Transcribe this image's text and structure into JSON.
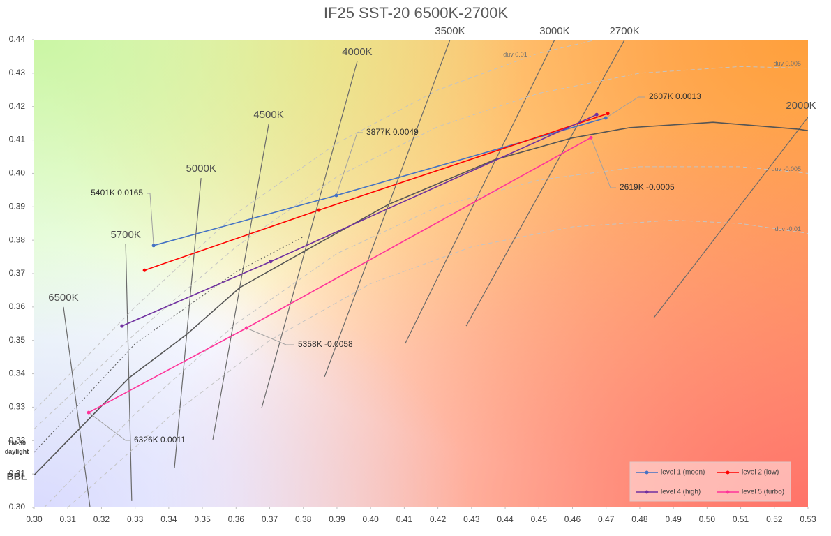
{
  "chart_data": {
    "type": "line",
    "title": "IF25 SST-20 6500K-2700K",
    "xlim": [
      0.3,
      0.53
    ],
    "ylim": [
      0.3,
      0.44
    ],
    "xticks": [
      {
        "value": 0.3,
        "label": "0.30"
      },
      {
        "value": 0.31,
        "label": "0.31"
      },
      {
        "value": 0.32,
        "label": "0.32"
      },
      {
        "value": 0.33,
        "label": "0.33"
      },
      {
        "value": 0.34,
        "label": "0.34"
      },
      {
        "value": 0.35,
        "label": "0.35"
      },
      {
        "value": 0.36,
        "label": "0.36"
      },
      {
        "value": 0.37,
        "label": "0.37"
      },
      {
        "value": 0.38,
        "label": "0.38"
      },
      {
        "value": 0.39,
        "label": "0.39"
      },
      {
        "value": 0.4,
        "label": "0.40"
      },
      {
        "value": 0.41,
        "label": "0.41"
      },
      {
        "value": 0.42,
        "label": "0.42"
      },
      {
        "value": 0.43,
        "label": "0.43"
      },
      {
        "value": 0.44,
        "label": "0.44"
      },
      {
        "value": 0.45,
        "label": "0.45"
      },
      {
        "value": 0.46,
        "label": "0.46"
      },
      {
        "value": 0.47,
        "label": "0.47"
      },
      {
        "value": 0.48,
        "label": "0.48"
      },
      {
        "value": 0.49,
        "label": "0.49"
      },
      {
        "value": 0.5,
        "label": "0.50"
      },
      {
        "value": 0.51,
        "label": "0.51"
      },
      {
        "value": 0.52,
        "label": "0.52"
      },
      {
        "value": 0.53,
        "label": "0.53"
      }
    ],
    "yticks": [
      {
        "value": 0.3,
        "label": "0.30"
      },
      {
        "value": 0.31,
        "label": "0.31"
      },
      {
        "value": 0.32,
        "label": "0.32"
      },
      {
        "value": 0.33,
        "label": "0.33"
      },
      {
        "value": 0.34,
        "label": "0.34"
      },
      {
        "value": 0.35,
        "label": "0.35"
      },
      {
        "value": 0.36,
        "label": "0.36"
      },
      {
        "value": 0.37,
        "label": "0.37"
      },
      {
        "value": 0.38,
        "label": "0.38"
      },
      {
        "value": 0.39,
        "label": "0.39"
      },
      {
        "value": 0.4,
        "label": "0.40"
      },
      {
        "value": 0.41,
        "label": "0.41"
      },
      {
        "value": 0.42,
        "label": "0.42"
      },
      {
        "value": 0.43,
        "label": "0.43"
      },
      {
        "value": 0.44,
        "label": "0.44"
      }
    ],
    "grid": false,
    "legend": "lower right",
    "series": [
      {
        "name": "level 1 (moon)",
        "color": "#4472c4",
        "x": [
          0.3355,
          0.3898,
          0.4699
        ],
        "values": [
          0.3784,
          0.3934,
          0.4166
        ]
      },
      {
        "name": "level 2 (low)",
        "color": "#ff0000",
        "x": [
          0.3328,
          0.3846,
          0.4705
        ],
        "values": [
          0.371,
          0.389,
          0.4179
        ]
      },
      {
        "name": "level 4 (high)",
        "color": "#7030a0",
        "x": [
          0.3261,
          0.3703,
          0.4672
        ],
        "values": [
          0.3543,
          0.3736,
          0.4176
        ]
      },
      {
        "name": "level 5 (turbo)",
        "color": "#ff3399",
        "x": [
          0.3162,
          0.3631,
          0.4655
        ],
        "values": [
          0.3284,
          0.3537,
          0.4107
        ]
      }
    ],
    "reference_curves": [
      {
        "label": "6500K",
        "dash": "solid",
        "color": "#6a6a6a",
        "x": [
          0.3087,
          0.3166
        ],
        "y": [
          0.36,
          0.3
        ]
      },
      {
        "label": "5700K",
        "dash": "solid",
        "color": "#6a6a6a",
        "x": [
          0.3272,
          0.329
        ],
        "y": [
          0.3788,
          0.3019
        ]
      },
      {
        "label": "5000K",
        "dash": "solid",
        "color": "#6a6a6a",
        "x": [
          0.3496,
          0.3417
        ],
        "y": [
          0.3986,
          0.3119
        ]
      },
      {
        "label": "4500K",
        "dash": "solid",
        "color": "#6a6a6a",
        "x": [
          0.3697,
          0.3531
        ],
        "y": [
          0.4147,
          0.3203
        ]
      },
      {
        "label": "4000K",
        "dash": "solid",
        "color": "#6a6a6a",
        "x": [
          0.396,
          0.3676
        ],
        "y": [
          0.4335,
          0.3297
        ]
      },
      {
        "label": "3500K",
        "dash": "solid",
        "color": "#6a6a6a",
        "x": [
          0.4236,
          0.3863
        ],
        "y": [
          0.44,
          0.3391
        ]
      },
      {
        "label": "3000K",
        "dash": "solid",
        "color": "#6a6a6a",
        "x": [
          0.4547,
          0.4103
        ],
        "y": [
          0.44,
          0.3491
        ]
      },
      {
        "label": "2700K",
        "dash": "solid",
        "color": "#6a6a6a",
        "x": [
          0.4755,
          0.4284
        ],
        "y": [
          0.44,
          0.3543
        ]
      },
      {
        "label": "2000K",
        "dash": "solid",
        "color": "#6a6a6a",
        "x": [
          0.53,
          0.4842
        ],
        "y": [
          0.4168,
          0.3568
        ]
      },
      {
        "label": "duv 0.01",
        "dash": "dashed",
        "color": "#c4c4c4",
        "x": [
          0.3,
          0.33,
          0.36,
          0.39,
          0.42,
          0.45,
          0.467
        ],
        "y": [
          0.329,
          0.36,
          0.388,
          0.409,
          0.425,
          0.436,
          0.44
        ]
      },
      {
        "label": "duv 0.005",
        "dash": "dashed",
        "color": "#c4c4c4",
        "x": [
          0.3,
          0.33,
          0.36,
          0.39,
          0.42,
          0.45,
          0.48,
          0.51,
          0.53
        ],
        "y": [
          0.3235,
          0.352,
          0.378,
          0.399,
          0.414,
          0.424,
          0.43,
          0.432,
          0.4315
        ]
      },
      {
        "label": "duv -0.005",
        "dash": "dashed",
        "color": "#c4c4c4",
        "x": [
          0.303,
          0.33,
          0.36,
          0.39,
          0.42,
          0.45,
          0.48,
          0.51,
          0.53
        ],
        "y": [
          0.3,
          0.328,
          0.355,
          0.376,
          0.39,
          0.398,
          0.402,
          0.402,
          0.4
        ]
      },
      {
        "label": "duv -0.01",
        "dash": "dashed",
        "color": "#c4c4c4",
        "x": [
          0.31,
          0.34,
          0.37,
          0.4,
          0.43,
          0.46,
          0.49,
          0.51,
          0.53
        ],
        "y": [
          0.3,
          0.327,
          0.35,
          0.367,
          0.378,
          0.384,
          0.386,
          0.385,
          0.382
        ]
      },
      {
        "label": "TM-30 daylight",
        "dash": "dotted",
        "color": "#555555",
        "x": [
          0.3,
          0.33,
          0.36,
          0.38
        ],
        "y": [
          0.3165,
          0.349,
          0.3705,
          0.381
        ]
      },
      {
        "label": "BBL",
        "dash": "solid",
        "color": "#555555",
        "x": [
          0.3,
          0.3135,
          0.3282,
          0.3451,
          0.3611,
          0.3805,
          0.4053,
          0.4369,
          0.4599,
          0.477,
          0.5018,
          0.5266,
          0.53
        ],
        "y": [
          0.3097,
          0.3236,
          0.3388,
          0.3516,
          0.3658,
          0.3768,
          0.3907,
          0.4041,
          0.4106,
          0.4137,
          0.4153,
          0.4133,
          0.4128
        ]
      }
    ],
    "annotations": [
      {
        "text": "5401K 0.0165"
      },
      {
        "text": "3877K 0.0049"
      },
      {
        "text": "2607K 0.0013"
      },
      {
        "text": "2619K -0.0005"
      },
      {
        "text": "5358K -0.0058"
      },
      {
        "text": "6326K 0.0011"
      }
    ]
  }
}
